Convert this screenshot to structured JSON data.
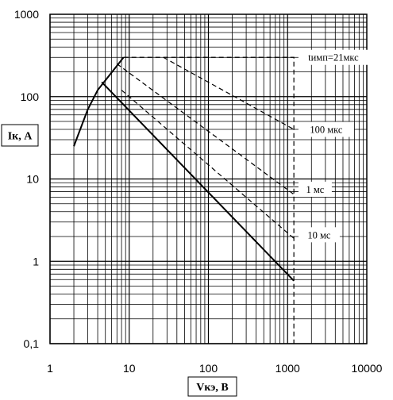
{
  "chart_data": {
    "type": "line",
    "x_scale": "log",
    "y_scale": "log",
    "xlim": [
      1,
      10000
    ],
    "ylim": [
      0.1,
      1000
    ],
    "grid": true,
    "xlabel": "Vкэ, В",
    "ylabel": "Iк, А",
    "x_ticks": [
      "1",
      "10",
      "100",
      "1000",
      "10000"
    ],
    "y_ticks": [
      "0,1",
      "1",
      "10",
      "100",
      "1000"
    ],
    "series": [
      {
        "name": "tимп=21мкс",
        "style": "dashed",
        "points": [
          [
            8.5,
            300
          ],
          [
            1200,
            300
          ],
          [
            1200,
            0.1
          ]
        ]
      },
      {
        "name": "100 мкс",
        "style": "dashed",
        "points": [
          [
            27,
            300
          ],
          [
            1200,
            40
          ]
        ]
      },
      {
        "name": "1 мс",
        "style": "dashed",
        "points": [
          [
            7,
            250
          ],
          [
            1200,
            6.5
          ]
        ]
      },
      {
        "name": "10 мс",
        "style": "dashed",
        "points": [
          [
            8,
            120
          ],
          [
            1200,
            1.9
          ]
        ]
      },
      {
        "name": "",
        "style": "solid",
        "points": [
          [
            2,
            25
          ],
          [
            3,
            70
          ],
          [
            4,
            120
          ],
          [
            8.5,
            300
          ]
        ]
      },
      {
        "name": "",
        "style": "solid",
        "points": [
          [
            4.5,
            150
          ],
          [
            1200,
            0.58
          ],
          [
            1200,
            0.58
          ]
        ]
      }
    ],
    "annotations": [
      {
        "text": "tимп=21мкс",
        "x": 1250,
        "y": 300
      },
      {
        "text": "100 мкс",
        "x": 1250,
        "y": 40
      },
      {
        "text": "1 мс",
        "x": 1250,
        "y": 7.5
      },
      {
        "text": "10 мс",
        "x": 1250,
        "y": 2.1
      }
    ]
  }
}
